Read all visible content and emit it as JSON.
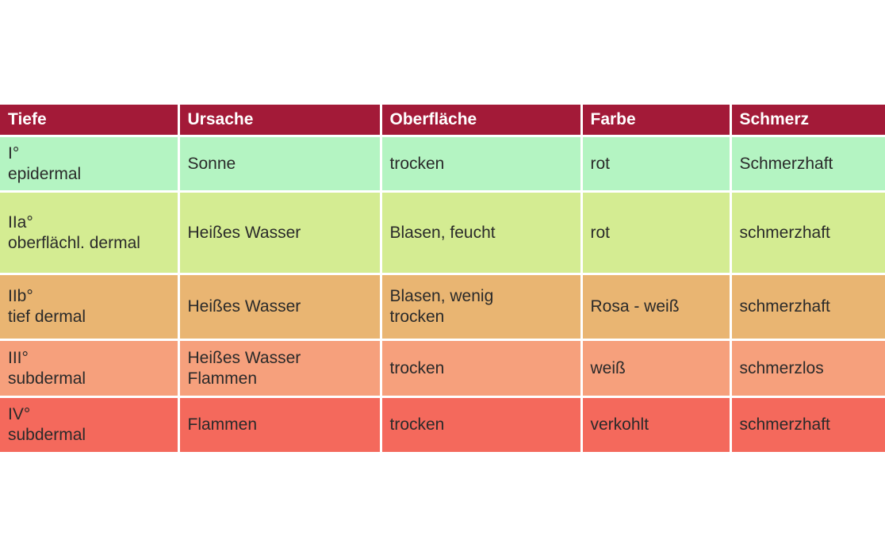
{
  "colors": {
    "header": "#a31a38",
    "rows": [
      "#b4f4c2",
      "#d4ec92",
      "#e9b572",
      "#f6a07c",
      "#f4695c"
    ]
  },
  "table": {
    "headers": [
      "Tiefe",
      "Ursache",
      "Oberfläche",
      "Farbe",
      "Schmerz"
    ],
    "rows": [
      [
        [
          "I°",
          "epidermal"
        ],
        [
          "Sonne"
        ],
        [
          "trocken"
        ],
        [
          "rot"
        ],
        [
          "Schmerzhaft"
        ]
      ],
      [
        [
          "IIa°",
          "oberflächl. dermal"
        ],
        [
          "Heißes Wasser"
        ],
        [
          "Blasen, feucht"
        ],
        [
          "rot"
        ],
        [
          "schmerzhaft"
        ]
      ],
      [
        [
          "IIb°",
          "tief dermal"
        ],
        [
          "Heißes Wasser"
        ],
        [
          "Blasen, wenig",
          "trocken"
        ],
        [
          "Rosa - weiß"
        ],
        [
          "schmerzhaft"
        ]
      ],
      [
        [
          "III°",
          "subdermal"
        ],
        [
          "Heißes Wasser",
          "Flammen"
        ],
        [
          "trocken"
        ],
        [
          "weiß"
        ],
        [
          "schmerzlos"
        ]
      ],
      [
        [
          "IV°",
          "subdermal"
        ],
        [
          "Flammen"
        ],
        [
          "trocken"
        ],
        [
          "verkohlt"
        ],
        [
          "schmerzhaft"
        ]
      ]
    ]
  }
}
